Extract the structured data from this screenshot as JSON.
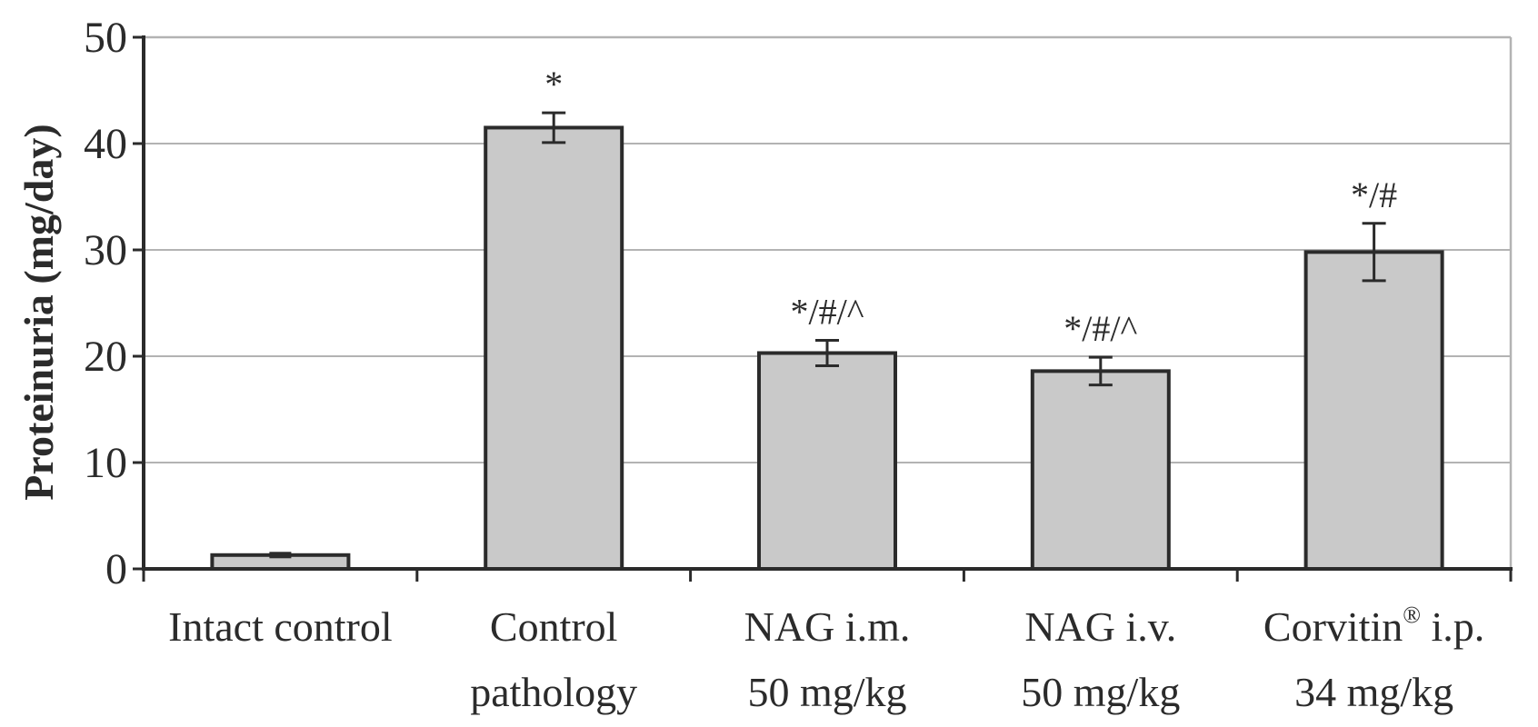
{
  "chart_data": {
    "type": "bar",
    "ylabel": "Proteinuria (mg/day)",
    "xlabel": "",
    "ylim": [
      0,
      50
    ],
    "yticks": [
      0,
      10,
      20,
      30,
      40,
      50
    ],
    "grid": true,
    "categories": [
      {
        "lines": [
          "Intact control"
        ]
      },
      {
        "lines": [
          "Control",
          "pathology"
        ]
      },
      {
        "lines": [
          "NAG i.m.",
          "50 mg/kg"
        ]
      },
      {
        "lines": [
          "NAG i.v.",
          "50 mg/kg"
        ]
      },
      {
        "lines": [
          "Corvitin",
          "i.p."
        ],
        "superscript": "®",
        "line2": "34 mg/kg"
      }
    ],
    "values": [
      1.3,
      41.5,
      20.3,
      18.6,
      29.8
    ],
    "errors": [
      0.3,
      1.4,
      1.2,
      1.3,
      2.7
    ],
    "annotations": [
      "",
      "*",
      "*/#/^",
      "*/#/^",
      "*/#"
    ],
    "colors": {
      "bar_fill": "#c9c9c9",
      "bar_stroke": "#2b2b2b",
      "grid": "#b3b3b3",
      "axis": "#2b2b2b"
    }
  }
}
